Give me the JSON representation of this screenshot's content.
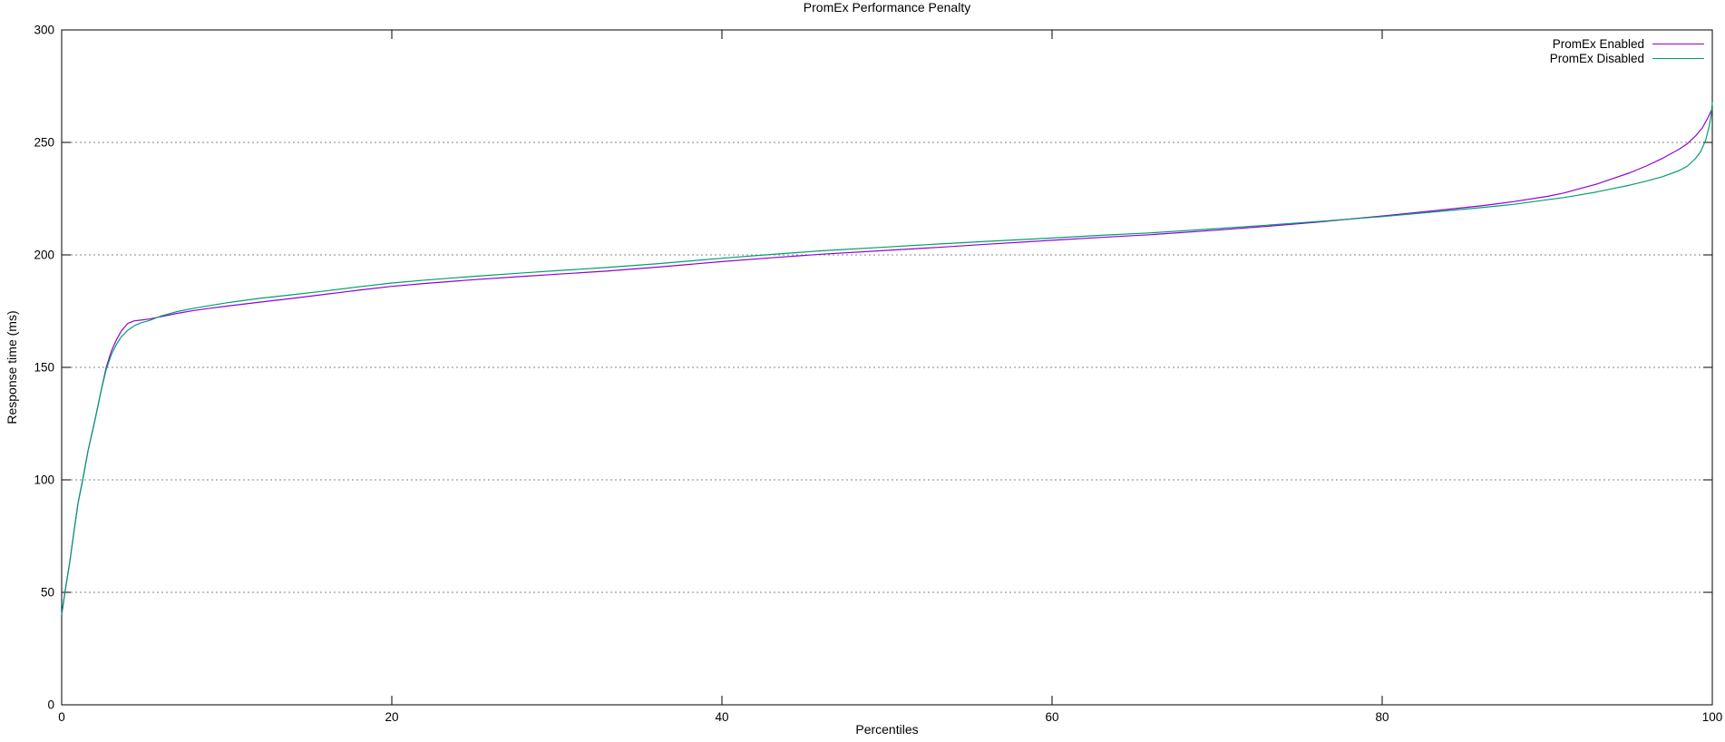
{
  "colors": {
    "background": "#ffffff",
    "axis": "#000000",
    "grid": "#848484",
    "series_enabled": "#9400d3",
    "series_disabled": "#009e73"
  },
  "chart_data": {
    "type": "line",
    "title": "PromEx Performance Penalty",
    "xlabel": "Percentiles",
    "ylabel": "Response time (ms)",
    "xlim": [
      0,
      100
    ],
    "ylim": [
      0,
      300
    ],
    "xticks": [
      0,
      20,
      40,
      60,
      80,
      100
    ],
    "yticks": [
      0,
      50,
      100,
      150,
      200,
      250,
      300
    ],
    "grid": "horizontal dotted lines at y ticks, no vertical grid",
    "legend_position": "top-right inside plot, text right-aligned with line sample at right",
    "series": [
      {
        "name": "PromEx Enabled",
        "color": "#9400d3",
        "points": [
          [
            0,
            40
          ],
          [
            0.2,
            50
          ],
          [
            0.5,
            64
          ],
          [
            0.8,
            80
          ],
          [
            1,
            90
          ],
          [
            1.3,
            101
          ],
          [
            1.6,
            113
          ],
          [
            2,
            126
          ],
          [
            2.4,
            140
          ],
          [
            2.7,
            150
          ],
          [
            3,
            157
          ],
          [
            3.3,
            162
          ],
          [
            3.6,
            166
          ],
          [
            4,
            169.5
          ],
          [
            4.4,
            170.7
          ],
          [
            4.8,
            171
          ],
          [
            5.3,
            171.5
          ],
          [
            6,
            172.5
          ],
          [
            7,
            174
          ],
          [
            8,
            175.3
          ],
          [
            9,
            176.3
          ],
          [
            10,
            177.2
          ],
          [
            12,
            179
          ],
          [
            14,
            180.7
          ],
          [
            16,
            182.5
          ],
          [
            18,
            184.3
          ],
          [
            20,
            186
          ],
          [
            22,
            187.3
          ],
          [
            25,
            189
          ],
          [
            28,
            190.5
          ],
          [
            30,
            191.4
          ],
          [
            33,
            192.8
          ],
          [
            36,
            194.5
          ],
          [
            40,
            197
          ],
          [
            43,
            198.7
          ],
          [
            46,
            200.3
          ],
          [
            50,
            202
          ],
          [
            53,
            203.3
          ],
          [
            56,
            204.7
          ],
          [
            60,
            206.5
          ],
          [
            63,
            207.8
          ],
          [
            66,
            209
          ],
          [
            70,
            211
          ],
          [
            73,
            212.7
          ],
          [
            76,
            214.5
          ],
          [
            80,
            217.3
          ],
          [
            83,
            219.5
          ],
          [
            86,
            221.8
          ],
          [
            88,
            223.7
          ],
          [
            90,
            226
          ],
          [
            91,
            227.5
          ],
          [
            92,
            229.5
          ],
          [
            93,
            231.5
          ],
          [
            94,
            234
          ],
          [
            95,
            236.5
          ],
          [
            96,
            239.5
          ],
          [
            97,
            243
          ],
          [
            98,
            247
          ],
          [
            98.5,
            249.5
          ],
          [
            99,
            253
          ],
          [
            99.4,
            256.5
          ],
          [
            99.7,
            260.5
          ],
          [
            100,
            265
          ]
        ]
      },
      {
        "name": "PromEx Disabled",
        "color": "#009e73",
        "points": [
          [
            0,
            40
          ],
          [
            0.2,
            50
          ],
          [
            0.5,
            64
          ],
          [
            0.8,
            80
          ],
          [
            1,
            90
          ],
          [
            1.3,
            101
          ],
          [
            1.6,
            113
          ],
          [
            2,
            126
          ],
          [
            2.4,
            140
          ],
          [
            2.7,
            149
          ],
          [
            3,
            155.5
          ],
          [
            3.3,
            160
          ],
          [
            3.6,
            163.5
          ],
          [
            4,
            166.5
          ],
          [
            4.4,
            168.5
          ],
          [
            4.8,
            169.8
          ],
          [
            5.3,
            170.8
          ],
          [
            6,
            172.8
          ],
          [
            7,
            174.8
          ],
          [
            8,
            176.3
          ],
          [
            9,
            177.5
          ],
          [
            10,
            178.7
          ],
          [
            12,
            180.7
          ],
          [
            14,
            182.3
          ],
          [
            16,
            184
          ],
          [
            18,
            185.8
          ],
          [
            20,
            187.5
          ],
          [
            22,
            188.8
          ],
          [
            25,
            190.5
          ],
          [
            28,
            192
          ],
          [
            30,
            193
          ],
          [
            33,
            194.4
          ],
          [
            36,
            196
          ],
          [
            40,
            198.5
          ],
          [
            43,
            200.2
          ],
          [
            46,
            201.8
          ],
          [
            50,
            203.5
          ],
          [
            53,
            204.8
          ],
          [
            56,
            206
          ],
          [
            60,
            207.5
          ],
          [
            63,
            208.7
          ],
          [
            66,
            209.8
          ],
          [
            70,
            211.7
          ],
          [
            73,
            213.2
          ],
          [
            76,
            214.8
          ],
          [
            80,
            217
          ],
          [
            83,
            219
          ],
          [
            86,
            221
          ],
          [
            88,
            222.5
          ],
          [
            90,
            224.5
          ],
          [
            91,
            225.5
          ],
          [
            92,
            226.7
          ],
          [
            93,
            228
          ],
          [
            94,
            229.5
          ],
          [
            95,
            231
          ],
          [
            96,
            232.8
          ],
          [
            97,
            234.8
          ],
          [
            98,
            237.5
          ],
          [
            98.5,
            239.5
          ],
          [
            99,
            243
          ],
          [
            99.3,
            246
          ],
          [
            99.6,
            251
          ],
          [
            99.8,
            257
          ],
          [
            99.95,
            263
          ],
          [
            100,
            268
          ]
        ]
      }
    ]
  }
}
